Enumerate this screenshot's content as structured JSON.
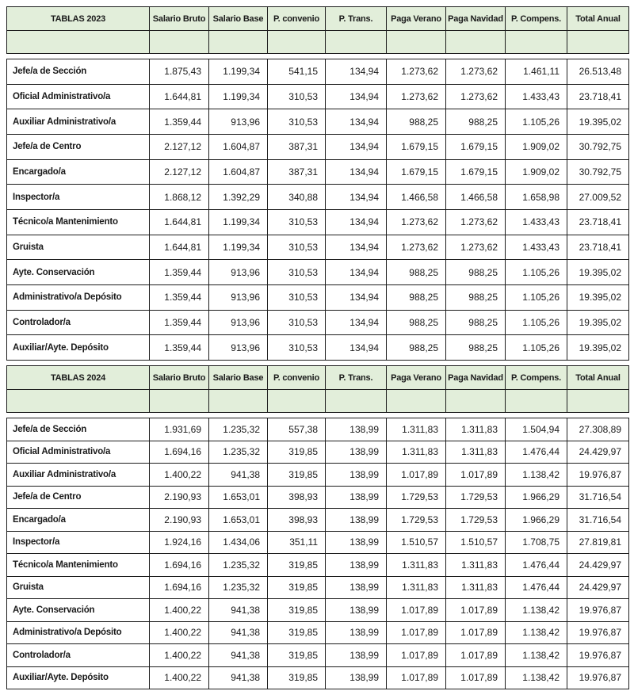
{
  "page": {
    "background": "#ffffff",
    "border_color": "#1c1c1c",
    "header_bg": "#e2eeda",
    "text_color": "#1a1a1a"
  },
  "columns": [
    "Salario Bruto",
    "Salario Base",
    "P. convenio",
    "P. Trans.",
    "Paga Verano",
    "Paga Navidad",
    "P. Compens.",
    "Total Anual"
  ],
  "tables": [
    {
      "title": "TABLAS 2023",
      "rows": [
        {
          "label": "Jefe/a de Sección",
          "values": [
            "1.875,43",
            "1.199,34",
            "541,15",
            "134,94",
            "1.273,62",
            "1.273,62",
            "1.461,11",
            "26.513,48"
          ]
        },
        {
          "label": "Oficial Administrativo/a",
          "values": [
            "1.644,81",
            "1.199,34",
            "310,53",
            "134,94",
            "1.273,62",
            "1.273,62",
            "1.433,43",
            "23.718,41"
          ]
        },
        {
          "label": "Auxiliar Administrativo/a",
          "values": [
            "1.359,44",
            "913,96",
            "310,53",
            "134,94",
            "988,25",
            "988,25",
            "1.105,26",
            "19.395,02"
          ]
        },
        {
          "label": "Jefe/a de Centro",
          "values": [
            "2.127,12",
            "1.604,87",
            "387,31",
            "134,94",
            "1.679,15",
            "1.679,15",
            "1.909,02",
            "30.792,75"
          ]
        },
        {
          "label": "Encargado/a",
          "values": [
            "2.127,12",
            "1.604,87",
            "387,31",
            "134,94",
            "1.679,15",
            "1.679,15",
            "1.909,02",
            "30.792,75"
          ]
        },
        {
          "label": "Inspector/a",
          "values": [
            "1.868,12",
            "1.392,29",
            "340,88",
            "134,94",
            "1.466,58",
            "1.466,58",
            "1.658,98",
            "27.009,52"
          ]
        },
        {
          "label": "Técnico/a Mantenimiento",
          "values": [
            "1.644,81",
            "1.199,34",
            "310,53",
            "134,94",
            "1.273,62",
            "1.273,62",
            "1.433,43",
            "23.718,41"
          ]
        },
        {
          "label": "Gruista",
          "values": [
            "1.644,81",
            "1.199,34",
            "310,53",
            "134,94",
            "1.273,62",
            "1.273,62",
            "1.433,43",
            "23.718,41"
          ]
        },
        {
          "label": "Ayte. Conservación",
          "values": [
            "1.359,44",
            "913,96",
            "310,53",
            "134,94",
            "988,25",
            "988,25",
            "1.105,26",
            "19.395,02"
          ]
        },
        {
          "label": "Administrativo/a Depósito",
          "values": [
            "1.359,44",
            "913,96",
            "310,53",
            "134,94",
            "988,25",
            "988,25",
            "1.105,26",
            "19.395,02"
          ]
        },
        {
          "label": "Controlador/a",
          "values": [
            "1.359,44",
            "913,96",
            "310,53",
            "134,94",
            "988,25",
            "988,25",
            "1.105,26",
            "19.395,02"
          ]
        },
        {
          "label": "Auxiliar/Ayte. Depósito",
          "values": [
            "1.359,44",
            "913,96",
            "310,53",
            "134,94",
            "988,25",
            "988,25",
            "1.105,26",
            "19.395,02"
          ]
        }
      ]
    },
    {
      "title": "TABLAS 2024",
      "rows": [
        {
          "label": "Jefe/a de Sección",
          "values": [
            "1.931,69",
            "1.235,32",
            "557,38",
            "138,99",
            "1.311,83",
            "1.311,83",
            "1.504,94",
            "27.308,89"
          ]
        },
        {
          "label": "Oficial Administrativo/a",
          "values": [
            "1.694,16",
            "1.235,32",
            "319,85",
            "138,99",
            "1.311,83",
            "1.311,83",
            "1.476,44",
            "24.429,97"
          ]
        },
        {
          "label": "Auxiliar Administrativo/a",
          "values": [
            "1.400,22",
            "941,38",
            "319,85",
            "138,99",
            "1.017,89",
            "1.017,89",
            "1.138,42",
            "19.976,87"
          ]
        },
        {
          "label": "Jefe/a de Centro",
          "values": [
            "2.190,93",
            "1.653,01",
            "398,93",
            "138,99",
            "1.729,53",
            "1.729,53",
            "1.966,29",
            "31.716,54"
          ]
        },
        {
          "label": "Encargado/a",
          "values": [
            "2.190,93",
            "1.653,01",
            "398,93",
            "138,99",
            "1.729,53",
            "1.729,53",
            "1.966,29",
            "31.716,54"
          ]
        },
        {
          "label": "Inspector/a",
          "values": [
            "1.924,16",
            "1.434,06",
            "351,11",
            "138,99",
            "1.510,57",
            "1.510,57",
            "1.708,75",
            "27.819,81"
          ]
        },
        {
          "label": "Técnico/a Mantenimiento",
          "values": [
            "1.694,16",
            "1.235,32",
            "319,85",
            "138,99",
            "1.311,83",
            "1.311,83",
            "1.476,44",
            "24.429,97"
          ]
        },
        {
          "label": "Gruista",
          "values": [
            "1.694,16",
            "1.235,32",
            "319,85",
            "138,99",
            "1.311,83",
            "1.311,83",
            "1.476,44",
            "24.429,97"
          ]
        },
        {
          "label": "Ayte. Conservación",
          "values": [
            "1.400,22",
            "941,38",
            "319,85",
            "138,99",
            "1.017,89",
            "1.017,89",
            "1.138,42",
            "19.976,87"
          ]
        },
        {
          "label": "Administrativo/a Depósito",
          "values": [
            "1.400,22",
            "941,38",
            "319,85",
            "138,99",
            "1.017,89",
            "1.017,89",
            "1.138,42",
            "19.976,87"
          ]
        },
        {
          "label": "Controlador/a",
          "values": [
            "1.400,22",
            "941,38",
            "319,85",
            "138,99",
            "1.017,89",
            "1.017,89",
            "1.138,42",
            "19.976,87"
          ]
        },
        {
          "label": "Auxiliar/Ayte. Depósito",
          "values": [
            "1.400,22",
            "941,38",
            "319,85",
            "138,99",
            "1.017,89",
            "1.017,89",
            "1.138,42",
            "19.976,87"
          ]
        }
      ]
    }
  ]
}
